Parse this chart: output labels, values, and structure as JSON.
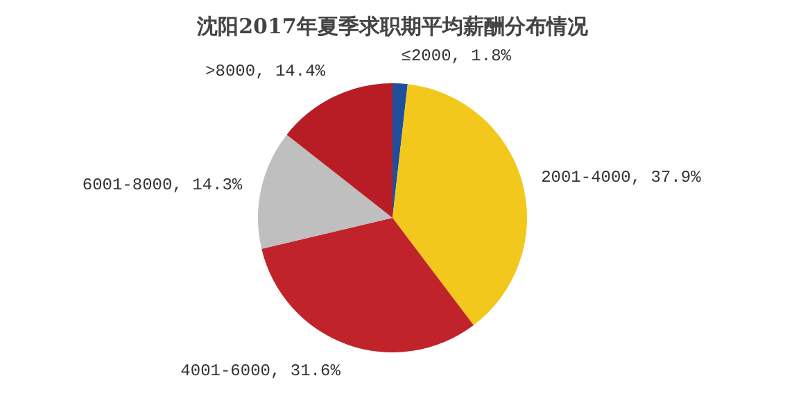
{
  "chart_data": {
    "type": "pie",
    "title": "沈阳2017年夏季求职期平均薪酬分布情况",
    "categories": [
      "≤2000",
      "2001-4000",
      "4001-6000",
      "6001-8000",
      ">8000"
    ],
    "values": [
      1.8,
      37.9,
      31.6,
      14.3,
      14.4
    ],
    "colors": [
      "#1f4f9c",
      "#f2c81c",
      "#c1232b",
      "#bfbfbf",
      "#b81d25"
    ],
    "value_labels": [
      "1.8%",
      "37.9%",
      "31.6%",
      "14.3%",
      "14.4%"
    ],
    "legend": false
  }
}
